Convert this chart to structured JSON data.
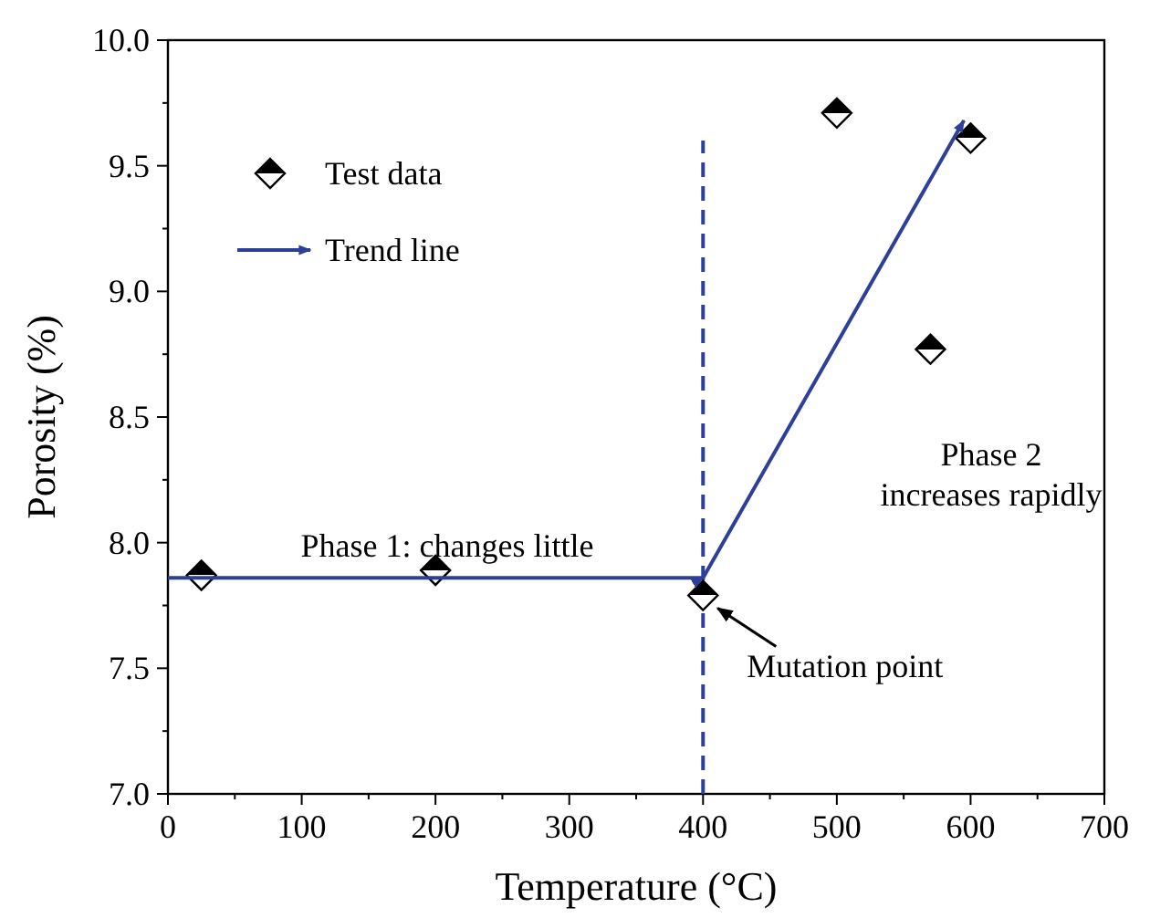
{
  "chart_data": {
    "type": "scatter",
    "xlabel": "Temperature (°C)",
    "ylabel": "Porosity (%)",
    "xlim": [
      0,
      700
    ],
    "xticks": [
      0,
      100,
      200,
      300,
      400,
      500,
      600,
      700
    ],
    "ylim": [
      7,
      10
    ],
    "yticks": [
      {
        "value": 7,
        "label": "7.0"
      },
      {
        "value": 7.5,
        "label": "7.5"
      },
      {
        "value": 8,
        "label": "8.0"
      },
      {
        "value": 8.5,
        "label": "8.5"
      },
      {
        "value": 9,
        "label": "9.0"
      },
      {
        "value": 9.5,
        "label": "9.5"
      },
      {
        "value": 10,
        "label": "10.0"
      }
    ],
    "legend": "top left",
    "series": [
      {
        "name": "Test data",
        "marker": "diamond",
        "color": "#000000",
        "x": [
          25,
          200,
          400,
          500,
          570,
          600
        ],
        "values": [
          7.87,
          7.89,
          7.79,
          9.71,
          8.77,
          9.61
        ]
      },
      {
        "name": "Trend line",
        "type": "line",
        "color": "#2e3f9a",
        "x": [
          0,
          400,
          595
        ],
        "values": [
          7.86,
          7.86,
          9.68
        ]
      }
    ],
    "ref_lines": [
      {
        "axis": "x",
        "value": 400,
        "color": "#2e3f9a",
        "line_style": "dashed"
      }
    ],
    "annotations": [
      "Phase 1: changes little",
      "Phase 2\nincreases rapidly",
      {
        "text": "Mutation point",
        "x": 400,
        "y": 7.79
      }
    ]
  }
}
